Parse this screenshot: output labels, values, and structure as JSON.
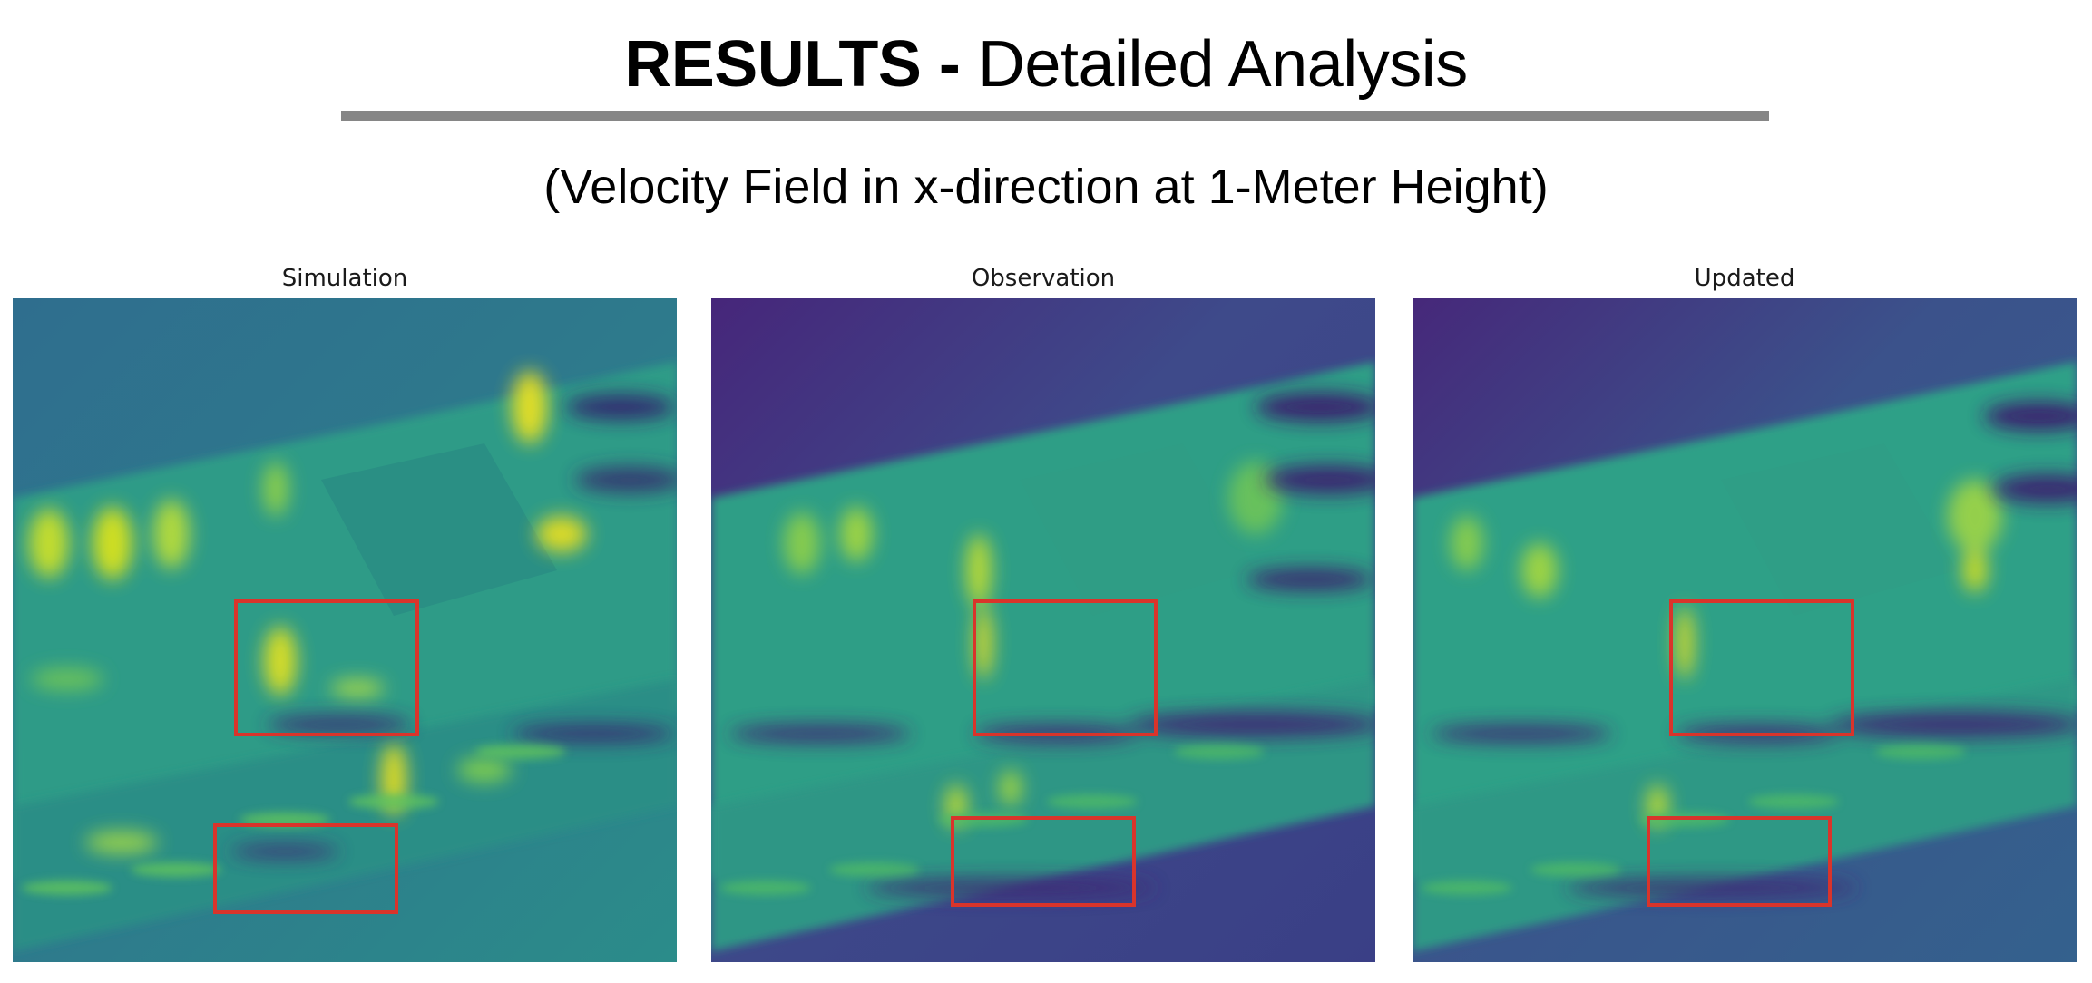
{
  "slide": {
    "title_strong": "RESULTS -",
    "title_rest": " Detailed Analysis",
    "subtitle": "(Velocity Field in x-direction at 1-Meter Height)"
  },
  "panels": [
    {
      "label": "Simulation",
      "theme": "simulation"
    },
    {
      "label": "Observation",
      "theme": "observation"
    },
    {
      "label": "Updated",
      "theme": "updated"
    }
  ],
  "colors": {
    "highlight_box": "#d9342b",
    "rule": "#868686",
    "viridis_dark": "#3b2a6e",
    "viridis_blue": "#33588c",
    "viridis_teal": "#2a8a8a",
    "viridis_green": "#3fae79",
    "viridis_yellow": "#e8e020"
  }
}
